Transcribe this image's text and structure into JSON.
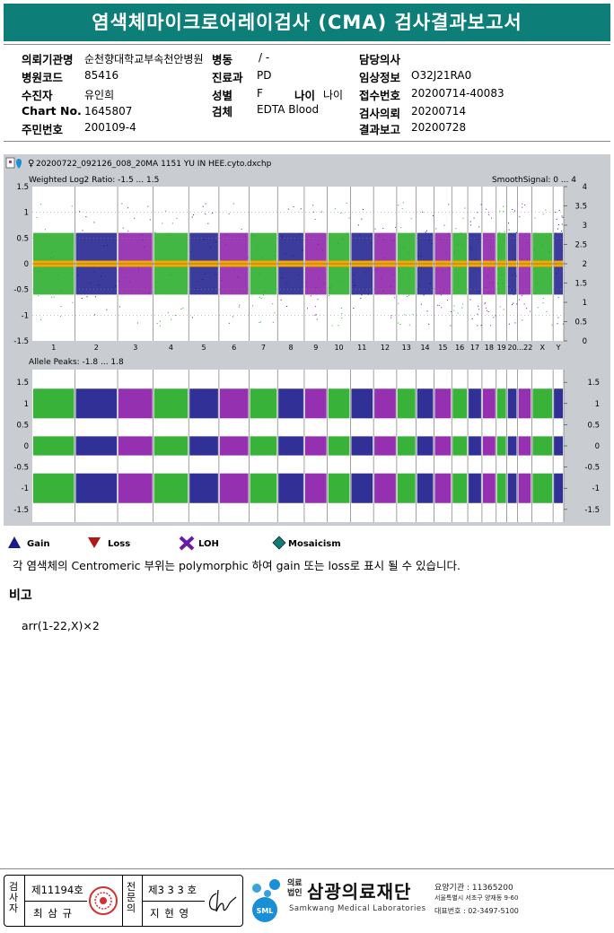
{
  "title": "염색체마이크로어레이검사 (CMA) 검사결과보고서",
  "header": {
    "left": [
      {
        "label": "의뢰기관명",
        "value": "순천향대학교부속천안병원"
      },
      {
        "label": "병원코드",
        "value": "85416"
      },
      {
        "label": "수진자",
        "value": "유인희"
      },
      {
        "label": "Chart No.",
        "value": "1645807"
      },
      {
        "label": "주민번호",
        "value": "200109-4"
      }
    ],
    "mid": [
      {
        "label": "병동",
        "value": "/ -"
      },
      {
        "label": "진료과",
        "value": "PD"
      },
      {
        "label": "성별",
        "value": "F"
      },
      {
        "label": "검체",
        "value": "EDTA Blood"
      }
    ],
    "age": {
      "label": "나이",
      "value": "나이"
    },
    "right": [
      {
        "label": "담당의사",
        "value": ""
      },
      {
        "label": "임상정보",
        "value": "O32J21RA0"
      },
      {
        "label": "접수번호",
        "value": "20200714-40083"
      },
      {
        "label": "검사의뢰",
        "value": "20200714"
      },
      {
        "label": "결과보고",
        "value": "20200728"
      }
    ]
  },
  "plot": {
    "file_name": "20200722_092126_008_20MA 1151 YU IN HEE.cyto.dxchp",
    "top_label": "Weighted Log2 Ratio: -1.5 ... 1.5",
    "top_right_label": "SmoothSignal: 0 ... 4",
    "bottom_label": "Allele Peaks: -1.8 ... 1.8",
    "top_left_ticks": [
      "1.5",
      "1",
      "0.5",
      "0",
      "-0.5",
      "-1",
      "-1.5"
    ],
    "top_right_ticks": [
      "4",
      "3.5",
      "3",
      "2.5",
      "2",
      "1.5",
      "1",
      "0.5",
      "0"
    ],
    "bottom_left_ticks": [
      "1.5",
      "1",
      "0.5",
      "0",
      "-0.5",
      "-1",
      "-1.5"
    ],
    "bottom_right_ticks": [
      "1.5",
      "1",
      "0.5",
      "0",
      "-0.5",
      "-1",
      "-1.5"
    ],
    "chromosomes": [
      "1",
      "2",
      "3",
      "4",
      "5",
      "6",
      "7",
      "8",
      "9",
      "10",
      "11",
      "12",
      "13",
      "14",
      "15",
      "16",
      "17",
      "18",
      "19",
      "20",
      "...22",
      "X",
      "Y"
    ],
    "colors": {
      "green": "#22aa22",
      "blue": "#1a1a8c",
      "purple": "#8a1aa8",
      "orange": "#f5a800",
      "frame": "#c9cdd2",
      "plot_bg": "#ffffff"
    }
  },
  "legend": [
    {
      "label": "Gain",
      "icon": "triangle-up-icon",
      "color": "#1a1a8c"
    },
    {
      "label": "Loss",
      "icon": "triangle-down-icon",
      "color": "#b01818"
    },
    {
      "label": "LOH",
      "icon": "cross-icon",
      "color": "#6a1aa8"
    },
    {
      "label": "Mosaicism",
      "icon": "diamond-icon",
      "color": "#0d7f78"
    }
  ],
  "note": "각 염색체의 Centromeric 부위는 polymorphic 하여 gain 또는 loss로 표시 될 수 있습니다.",
  "remarks_title": "비고",
  "result": "arr(1-22,X)×2",
  "footer": {
    "examiner_label": "검사자",
    "examiner_no": "제11194호",
    "examiner_name": "최 삼 규",
    "specialist_label": "전문의",
    "specialist_no": "제3 3 3 호",
    "specialist_name": "지 현 영",
    "org_prefix": "의료법인",
    "org_name": "삼광의료재단",
    "org_english": "Samkwang Medical Laboratories",
    "sml": "SML",
    "info": [
      "요양기관 : 11365200",
      "서울특별시 서초구 양재동 9-60",
      "대표번호 : 02-3497-5100"
    ]
  }
}
